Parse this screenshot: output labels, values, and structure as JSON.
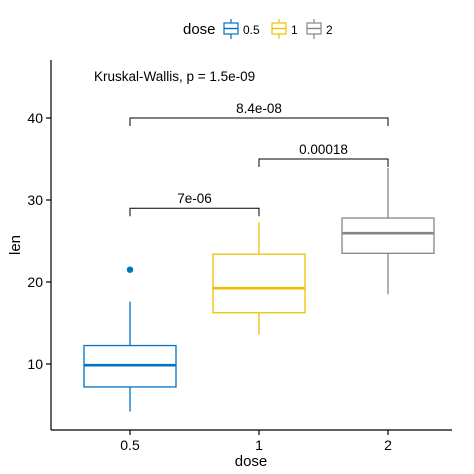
{
  "chart_data": {
    "type": "box",
    "xlabel": "dose",
    "ylabel": "len",
    "categories": [
      "0.5",
      "1",
      "2"
    ],
    "y_ticks": [
      10,
      20,
      30,
      40
    ],
    "ylim": [
      2.5,
      48
    ],
    "grid": false,
    "legend": {
      "position": "top",
      "title": "dose",
      "entries": [
        "0.5",
        "1",
        "2"
      ]
    },
    "series": [
      {
        "name": "0.5",
        "color": "#0073C2",
        "min": 4.2,
        "q1": 7.2,
        "median": 9.85,
        "q3": 12.25,
        "max": 17.6,
        "outliers": [
          21.5
        ]
      },
      {
        "name": "1",
        "color": "#EFC000",
        "min": 13.6,
        "q1": 16.25,
        "median": 19.25,
        "q3": 23.4,
        "max": 27.3,
        "outliers": []
      },
      {
        "name": "2",
        "color": "#868686",
        "min": 18.5,
        "q1": 23.5,
        "median": 25.95,
        "q3": 27.8,
        "max": 33.9,
        "outliers": []
      }
    ],
    "annotations": {
      "global_test": "Kruskal-Wallis, p = 1.5e-09",
      "comparisons": [
        {
          "from": "0.5",
          "to": "1",
          "y": 29.0,
          "label": "7e-06"
        },
        {
          "from": "1",
          "to": "2",
          "y": 35.0,
          "label": "0.00018"
        },
        {
          "from": "0.5",
          "to": "2",
          "y": 40.0,
          "label": "8.4e-08"
        }
      ]
    }
  }
}
